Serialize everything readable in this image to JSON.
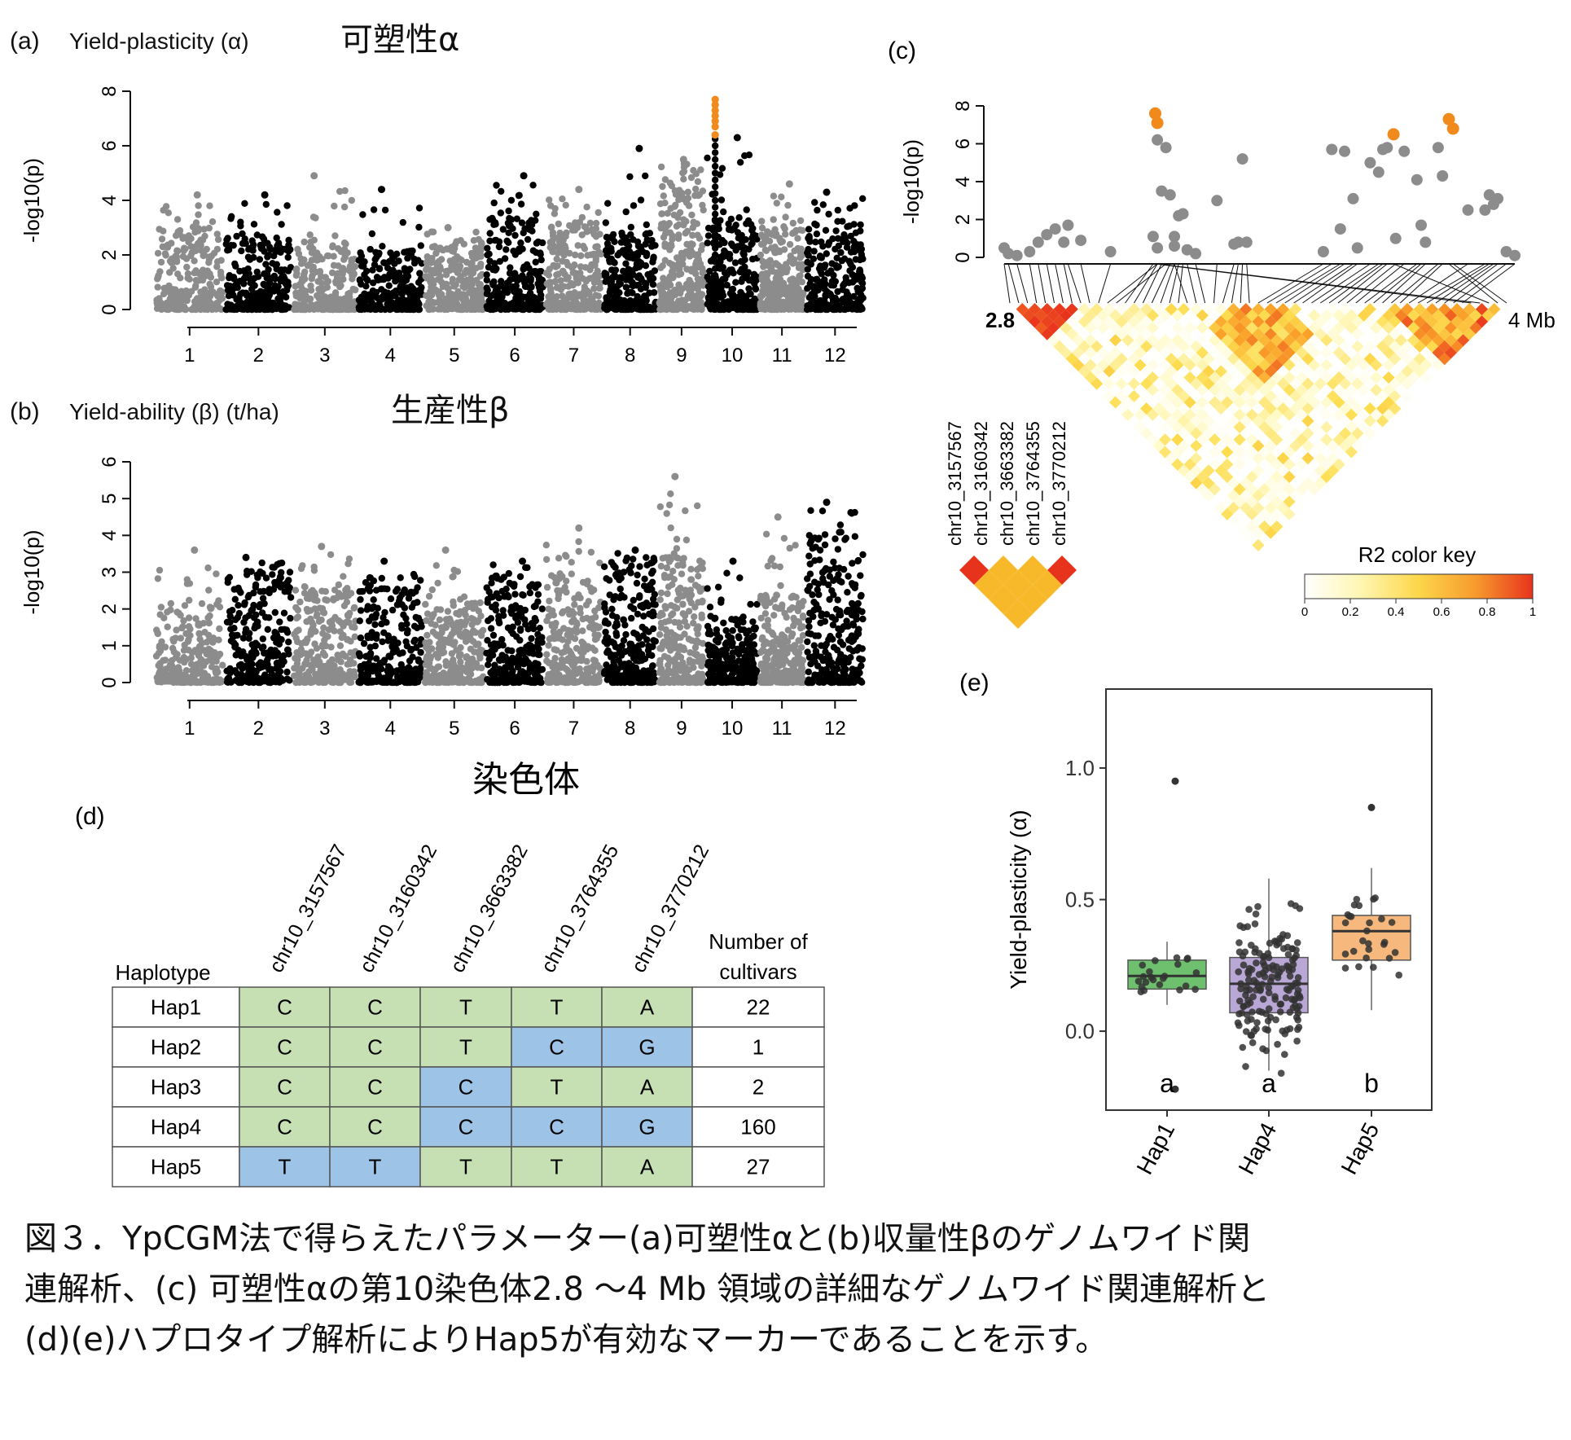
{
  "chart_data": [
    {
      "panel": "(a)",
      "type": "scatter",
      "title": "Yield-plasticity (α)",
      "title_ja": "可塑性α",
      "ylabel": "-log10(p)",
      "ylim": [
        0,
        8
      ],
      "yticks": [
        "0",
        "2",
        "4",
        "6",
        "8"
      ],
      "xticks": [
        "1",
        "2",
        "3",
        "4",
        "5",
        "6",
        "7",
        "8",
        "9",
        "10",
        "11",
        "12"
      ],
      "chromosomes": [
        {
          "chr": "1",
          "typical_max": 3.0,
          "peak": 4.2
        },
        {
          "chr": "2",
          "typical_max": 2.8,
          "peak": 4.2
        },
        {
          "chr": "3",
          "typical_max": 2.5,
          "peak": 4.9
        },
        {
          "chr": "4",
          "typical_max": 2.2,
          "peak": 4.4
        },
        {
          "chr": "5",
          "typical_max": 2.4,
          "peak": 3.0
        },
        {
          "chr": "6",
          "typical_max": 3.5,
          "peak": 4.9
        },
        {
          "chr": "7",
          "typical_max": 3.2,
          "peak": 4.4
        },
        {
          "chr": "8",
          "typical_max": 2.8,
          "peak": 5.9
        },
        {
          "chr": "9",
          "typical_max": 4.8,
          "peak": 5.5
        },
        {
          "chr": "10",
          "typical_max": 3.4,
          "peak": 6.3,
          "highlight": [
            6.4,
            6.7,
            6.9,
            7.1,
            7.3,
            7.5,
            7.7
          ]
        },
        {
          "chr": "11",
          "typical_max": 3.0,
          "peak": 4.6
        },
        {
          "chr": "12",
          "typical_max": 3.2,
          "peak": 4.3
        }
      ]
    },
    {
      "panel": "(b)",
      "type": "scatter",
      "title": "Yield-ability (β) (t/ha)",
      "title_ja": "生産性β",
      "ylabel": "-log10(p)",
      "xlabel": "染色体",
      "ylim": [
        0,
        6
      ],
      "yticks": [
        "0",
        "1",
        "2",
        "3",
        "4",
        "5",
        "6"
      ],
      "xticks": [
        "1",
        "2",
        "3",
        "4",
        "5",
        "6",
        "7",
        "8",
        "9",
        "10",
        "11",
        "12"
      ],
      "chromosomes": [
        {
          "chr": "1",
          "typical_max": 2.2,
          "peak": 3.6
        },
        {
          "chr": "2",
          "typical_max": 3.0,
          "peak": 3.4
        },
        {
          "chr": "3",
          "typical_max": 2.6,
          "peak": 3.7
        },
        {
          "chr": "4",
          "typical_max": 2.6,
          "peak": 3.3
        },
        {
          "chr": "5",
          "typical_max": 2.2,
          "peak": 3.6
        },
        {
          "chr": "6",
          "typical_max": 2.8,
          "peak": 3.3
        },
        {
          "chr": "7",
          "typical_max": 3.0,
          "peak": 4.2
        },
        {
          "chr": "8",
          "typical_max": 3.2,
          "peak": 3.6
        },
        {
          "chr": "9",
          "typical_max": 3.6,
          "peak": 5.6
        },
        {
          "chr": "10",
          "typical_max": 1.8,
          "peak": 3.3
        },
        {
          "chr": "11",
          "typical_max": 2.4,
          "peak": 4.5
        },
        {
          "chr": "12",
          "typical_max": 4.0,
          "peak": 4.9
        }
      ]
    },
    {
      "panel": "(c)",
      "type": "scatter",
      "ylabel": "-log10(p)",
      "ylim": [
        0,
        8
      ],
      "yticks": [
        "0",
        "2",
        "4",
        "6",
        "8"
      ],
      "range_start": "2.8",
      "range_end": "4 Mb",
      "points_gray": [
        [
          2.8,
          0.5
        ],
        [
          2.81,
          0.2
        ],
        [
          2.83,
          0.1
        ],
        [
          2.86,
          0.3
        ],
        [
          2.88,
          0.8
        ],
        [
          2.9,
          1.2
        ],
        [
          2.92,
          1.5
        ],
        [
          2.94,
          0.8
        ],
        [
          2.95,
          1.7
        ],
        [
          2.98,
          0.9
        ],
        [
          3.05,
          0.3
        ],
        [
          3.16,
          6.2
        ],
        [
          3.18,
          5.8
        ],
        [
          3.15,
          1.1
        ],
        [
          3.16,
          0.5
        ],
        [
          3.17,
          3.5
        ],
        [
          3.19,
          3.3
        ],
        [
          3.2,
          1.1
        ],
        [
          3.21,
          2.2
        ],
        [
          3.22,
          2.3
        ],
        [
          3.2,
          0.6
        ],
        [
          3.23,
          0.4
        ],
        [
          3.25,
          0.2
        ],
        [
          3.3,
          3.0
        ],
        [
          3.34,
          0.7
        ],
        [
          3.35,
          0.8
        ],
        [
          3.36,
          5.2
        ],
        [
          3.37,
          0.8
        ],
        [
          3.55,
          0.3
        ],
        [
          3.57,
          5.7
        ],
        [
          3.59,
          1.5
        ],
        [
          3.6,
          5.6
        ],
        [
          3.62,
          3.1
        ],
        [
          3.63,
          0.5
        ],
        [
          3.66,
          5.0
        ],
        [
          3.68,
          4.5
        ],
        [
          3.69,
          5.7
        ],
        [
          3.7,
          5.8
        ],
        [
          3.72,
          1.0
        ],
        [
          3.74,
          5.6
        ],
        [
          3.77,
          4.1
        ],
        [
          3.78,
          1.7
        ],
        [
          3.79,
          0.8
        ],
        [
          3.82,
          5.8
        ],
        [
          3.83,
          4.3
        ],
        [
          3.89,
          2.5
        ],
        [
          3.93,
          2.5
        ],
        [
          3.94,
          3.3
        ],
        [
          3.95,
          2.8
        ],
        [
          3.96,
          3.1
        ],
        [
          3.98,
          0.3
        ],
        [
          4.0,
          0.1
        ]
      ],
      "points_orange": [
        [
          3.155,
          7.6
        ],
        [
          3.16,
          7.1
        ],
        [
          3.715,
          6.5
        ],
        [
          3.845,
          7.3
        ],
        [
          3.855,
          6.8
        ]
      ],
      "ld_block_labels": [
        "chr10_3157567",
        "chr10_3160342",
        "chr10_3663382",
        "chr10_3764355",
        "chr10_3770212"
      ],
      "colorkey_title": "R2 color key",
      "colorkey_ticks": [
        "0",
        "0.2",
        "0.4",
        "0.6",
        "0.8",
        "1"
      ]
    },
    {
      "panel": "(d)",
      "type": "table",
      "columns": [
        "Haplotype",
        "chr10_3157567",
        "chr10_3160342",
        "chr10_3663382",
        "chr10_3764355",
        "chr10_3770212",
        "Number of cultivars"
      ],
      "rows": [
        {
          "hap": "Hap1",
          "alleles": [
            "C",
            "C",
            "T",
            "T",
            "A"
          ],
          "alt": [
            false,
            false,
            false,
            false,
            false
          ],
          "count": "22"
        },
        {
          "hap": "Hap2",
          "alleles": [
            "C",
            "C",
            "T",
            "C",
            "G"
          ],
          "alt": [
            false,
            false,
            false,
            true,
            true
          ],
          "count": "1"
        },
        {
          "hap": "Hap3",
          "alleles": [
            "C",
            "C",
            "C",
            "T",
            "A"
          ],
          "alt": [
            false,
            false,
            true,
            false,
            false
          ],
          "count": "2"
        },
        {
          "hap": "Hap4",
          "alleles": [
            "C",
            "C",
            "C",
            "C",
            "G"
          ],
          "alt": [
            false,
            false,
            true,
            true,
            true
          ],
          "count": "160"
        },
        {
          "hap": "Hap5",
          "alleles": [
            "T",
            "T",
            "T",
            "T",
            "A"
          ],
          "alt": [
            true,
            true,
            false,
            false,
            false
          ],
          "count": "27"
        }
      ]
    },
    {
      "panel": "(e)",
      "type": "box",
      "ylabel": "Yield-plasticity (α)",
      "ylim": [
        -0.3,
        1.3
      ],
      "yticks": [
        "0.0",
        "0.5",
        "1.0"
      ],
      "groups": [
        {
          "name": "Hap1",
          "letter": "a",
          "color": "#6ec06e",
          "q1": 0.16,
          "median": 0.21,
          "q3": 0.27,
          "whisker_low": 0.1,
          "whisker_high": 0.34,
          "outliers": [
            0.95,
            -0.22
          ]
        },
        {
          "name": "Hap4",
          "letter": "a",
          "color": "#b9a8d6",
          "q1": 0.07,
          "median": 0.18,
          "q3": 0.28,
          "whisker_low": -0.15,
          "whisker_high": 0.58,
          "outliers": []
        },
        {
          "name": "Hap5",
          "letter": "b",
          "color": "#f6b87c",
          "q1": 0.27,
          "median": 0.38,
          "q3": 0.44,
          "whisker_low": 0.08,
          "whisker_high": 0.62,
          "outliers": [
            0.85
          ]
        }
      ]
    }
  ],
  "colors": {
    "gray_points": "#8c8c8c",
    "black_points": "#000000",
    "highlight": "#f08a1c",
    "allele_ref": "#c6e0b4",
    "allele_alt": "#9dc3e6",
    "ld_high": "#e8331c"
  },
  "caption": {
    "line1": "図３．YpCGM法で得らえたパラメーター(a)可塑性αと(b)収量性βのゲノムワイド関",
    "line2": "連解析、(c) 可塑性αの第10染色体2.8 ～4 Mb 領域の詳細なゲノムワイド関連解析と",
    "line3": "(d)(e)ハプロタイプ解析によりHap5が有効なマーカーであることを示す。"
  }
}
